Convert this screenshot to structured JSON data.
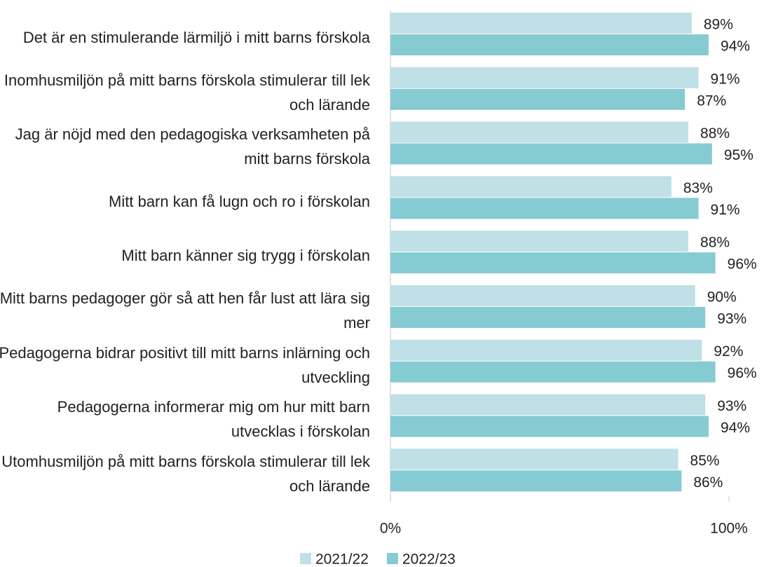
{
  "chart_data": {
    "type": "hbar",
    "categories": [
      "Det är en stimulerande lärmiljö i mitt barns förskola",
      "Inomhusmiljön på mitt barns förskola stimulerar till lek och lärande",
      "Jag är nöjd med den pedagogiska verksamheten på mitt barns förskola",
      "Mitt barn kan få lugn och ro i förskolan",
      "Mitt barn känner sig trygg i förskolan",
      "Mitt barns pedagoger gör så att hen får lust att lära sig mer",
      "Pedagogerna bidrar positivt till mitt barns inlärning och utveckling",
      "Pedagogerna informerar mig om hur mitt barn utvecklas i förskolan",
      "Utomhusmiljön på mitt barns förskola stimulerar till lek och lärande"
    ],
    "series": [
      {
        "name": "2021/22",
        "color": "#bfe0e6",
        "values": [
          89,
          91,
          88,
          83,
          88,
          90,
          92,
          93,
          85
        ],
        "value_labels": [
          "89%",
          "91%",
          "88%",
          "83%",
          "88%",
          "90%",
          "92%",
          "93%",
          "85%"
        ]
      },
      {
        "name": "2022/23",
        "color": "#86cbd2",
        "values": [
          94,
          87,
          95,
          91,
          96,
          93,
          96,
          94,
          86
        ],
        "value_labels": [
          "94%",
          "87%",
          "95%",
          "91%",
          "96%",
          "93%",
          "96%",
          "94%",
          "86%"
        ]
      }
    ],
    "xlim": [
      0,
      100
    ],
    "xticks": [
      {
        "value": 0,
        "label": "0%"
      },
      {
        "value": 100,
        "label": "100%"
      }
    ]
  }
}
